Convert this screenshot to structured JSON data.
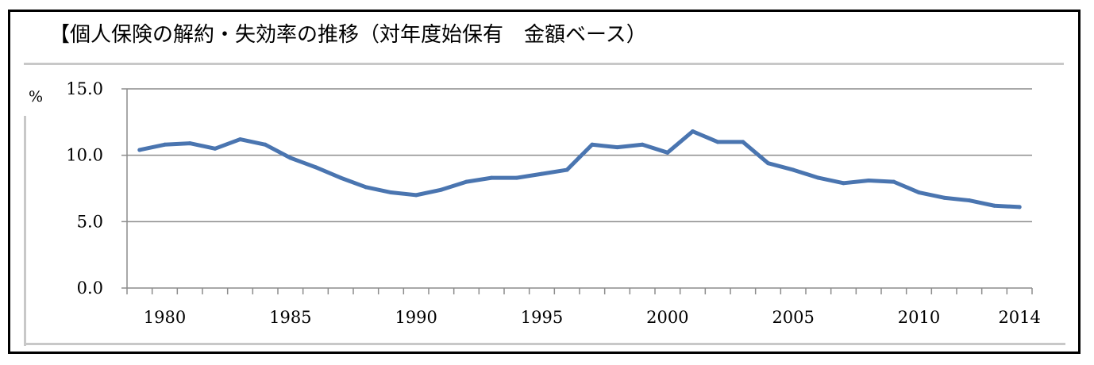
{
  "chart_data": {
    "type": "line",
    "title": "【個人保険の解約・失効率の推移（対年度始保有　金額ベース）",
    "ylabel": "%",
    "xlabel": "",
    "ylim": [
      0,
      15
    ],
    "y_ticks": [
      "0.0",
      "5.0",
      "10.0",
      "15.0"
    ],
    "x_tick_labels": [
      "1980",
      "1985",
      "1990",
      "1995",
      "2000",
      "2005",
      "2010",
      "2014"
    ],
    "grid": true,
    "legend": "none",
    "line_color": "#4a75b0",
    "x": [
      1979,
      1980,
      1981,
      1982,
      1983,
      1984,
      1985,
      1986,
      1987,
      1988,
      1989,
      1990,
      1991,
      1992,
      1993,
      1994,
      1995,
      1996,
      1997,
      1998,
      1999,
      2000,
      2001,
      2002,
      2003,
      2004,
      2005,
      2006,
      2007,
      2008,
      2009,
      2010,
      2011,
      2012,
      2013,
      2014
    ],
    "series": [
      {
        "values": [
          10.4,
          10.8,
          10.9,
          10.5,
          11.2,
          10.8,
          9.8,
          9.1,
          8.3,
          7.6,
          7.2,
          7.0,
          7.4,
          8.0,
          8.3,
          8.3,
          8.6,
          8.9,
          10.8,
          10.6,
          10.8,
          10.2,
          11.8,
          11.0,
          11.0,
          9.4,
          8.9,
          8.3,
          7.9,
          8.1,
          8.0,
          7.2,
          6.8,
          6.6,
          6.2,
          6.1
        ]
      }
    ]
  }
}
